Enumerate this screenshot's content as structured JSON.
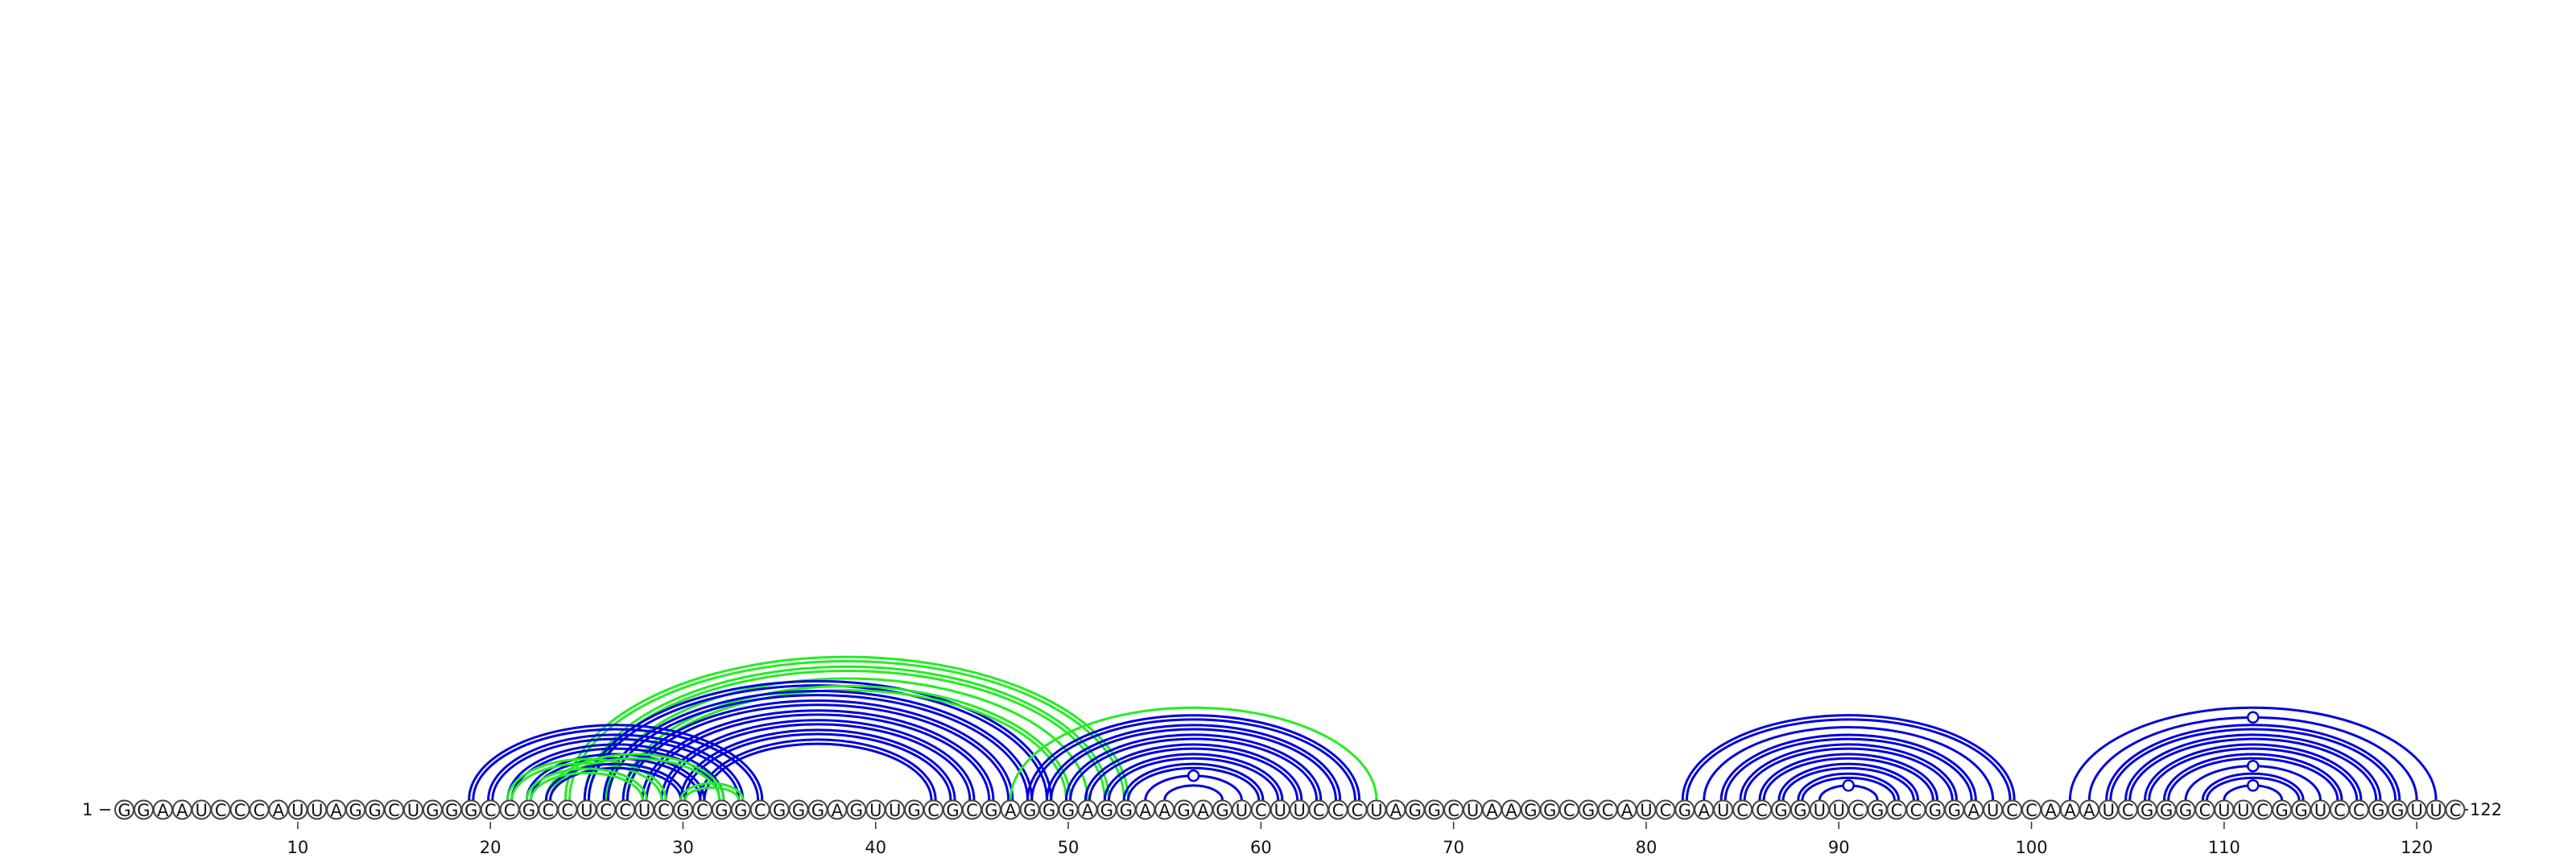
{
  "sequence": "GGAAUCCCAUUAGGCUGGGCCGCCUCCUCGCGGCGGGAGUUGCGCGAGGGAGGAAGAGUCUUCCCUAGGCUAAGGCGCAUCGAUCCGGUUCGCCGGAUCCAAAUCGGGCUUCGGUCCGGUUC",
  "start_label": "1",
  "end_label": "122",
  "ticks": [
    10,
    20,
    30,
    40,
    50,
    60,
    70,
    80,
    90,
    100,
    110,
    120
  ],
  "colors": {
    "blue": "#0000dd",
    "green": "#22ee22"
  },
  "pairs": [
    {
      "i": 19,
      "j": 34,
      "color": "blue",
      "double": true
    },
    {
      "i": 20,
      "j": 33,
      "color": "blue",
      "double": true
    },
    {
      "i": 21,
      "j": 32,
      "color": "blue",
      "double": true
    },
    {
      "i": 22,
      "j": 31,
      "color": "blue",
      "double": true
    },
    {
      "i": 23,
      "j": 30,
      "color": "blue",
      "double": true
    },
    {
      "i": 25,
      "j": 49,
      "color": "blue",
      "double": true
    },
    {
      "i": 26,
      "j": 48,
      "color": "blue",
      "double": true
    },
    {
      "i": 27,
      "j": 47,
      "color": "blue",
      "double": true
    },
    {
      "i": 28,
      "j": 46,
      "color": "blue",
      "double": true
    },
    {
      "i": 29,
      "j": 45,
      "color": "blue",
      "double": true
    },
    {
      "i": 30,
      "j": 44,
      "color": "blue",
      "double": true
    },
    {
      "i": 31,
      "j": 43,
      "color": "blue",
      "double": true
    },
    {
      "i": 48,
      "j": 65,
      "color": "blue",
      "double": true
    },
    {
      "i": 49,
      "j": 64,
      "color": "blue",
      "double": true
    },
    {
      "i": 50,
      "j": 63,
      "color": "blue",
      "double": true
    },
    {
      "i": 51,
      "j": 62,
      "color": "blue",
      "double": true
    },
    {
      "i": 52,
      "j": 61,
      "color": "blue",
      "double": true
    },
    {
      "i": 53,
      "j": 60,
      "color": "blue",
      "double": true
    },
    {
      "i": 54,
      "j": 59,
      "color": "blue",
      "double": false,
      "gu": true
    },
    {
      "i": 55,
      "j": 58,
      "color": "blue",
      "double": false
    },
    {
      "i": 82,
      "j": 99,
      "color": "blue",
      "double": true
    },
    {
      "i": 83,
      "j": 98,
      "color": "blue",
      "double": false
    },
    {
      "i": 84,
      "j": 97,
      "color": "blue",
      "double": true
    },
    {
      "i": 85,
      "j": 96,
      "color": "blue",
      "double": true
    },
    {
      "i": 86,
      "j": 95,
      "color": "blue",
      "double": true
    },
    {
      "i": 87,
      "j": 94,
      "color": "blue",
      "double": true
    },
    {
      "i": 88,
      "j": 93,
      "color": "blue",
      "double": true
    },
    {
      "i": 89,
      "j": 92,
      "color": "blue",
      "double": false,
      "gu": true
    },
    {
      "i": 102,
      "j": 121,
      "color": "blue",
      "double": false
    },
    {
      "i": 103,
      "j": 120,
      "color": "blue",
      "double": false,
      "gu": true
    },
    {
      "i": 104,
      "j": 119,
      "color": "blue",
      "double": true
    },
    {
      "i": 105,
      "j": 118,
      "color": "blue",
      "double": true
    },
    {
      "i": 106,
      "j": 117,
      "color": "blue",
      "double": true
    },
    {
      "i": 107,
      "j": 116,
      "color": "blue",
      "double": true
    },
    {
      "i": 108,
      "j": 115,
      "color": "blue",
      "double": false,
      "gu": true
    },
    {
      "i": 109,
      "j": 114,
      "color": "blue",
      "double": true
    },
    {
      "i": 110,
      "j": 113,
      "color": "blue",
      "double": false,
      "gu": true
    },
    {
      "i": 21,
      "j": 29,
      "color": "green",
      "double": true
    },
    {
      "i": 22,
      "j": 28,
      "color": "green",
      "double": true
    },
    {
      "i": 23,
      "j": 32,
      "color": "green",
      "double": true
    },
    {
      "i": 24,
      "j": 53,
      "color": "green",
      "double": true
    },
    {
      "i": 25,
      "j": 52,
      "color": "green",
      "double": true
    },
    {
      "i": 26,
      "j": 51,
      "color": "green",
      "double": false
    },
    {
      "i": 27,
      "j": 50,
      "color": "green",
      "double": true
    },
    {
      "i": 30,
      "j": 33,
      "color": "green",
      "double": true
    },
    {
      "i": 47,
      "j": 66,
      "color": "green",
      "double": false
    }
  ]
}
